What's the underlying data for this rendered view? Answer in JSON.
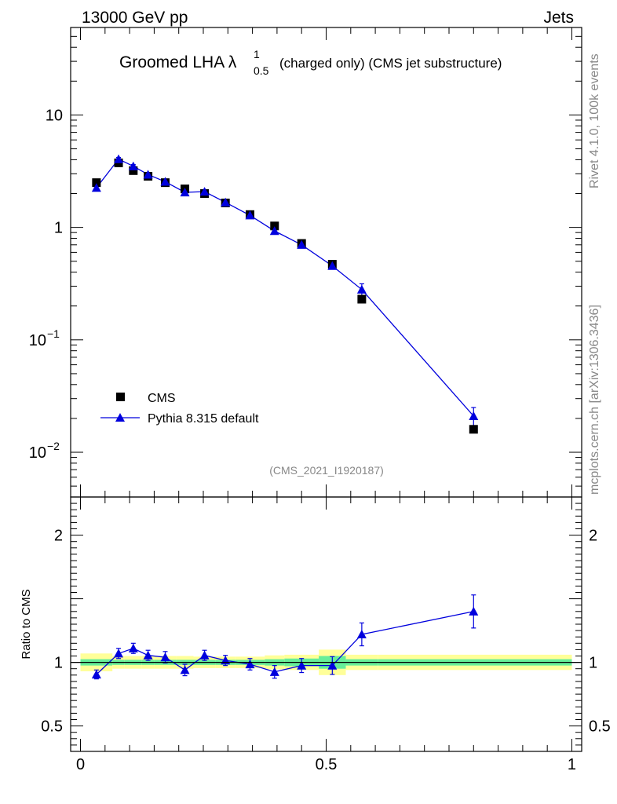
{
  "header": {
    "left": "13000 GeV pp",
    "right": "Jets"
  },
  "side_labels": {
    "rivet": "Rivet 4.1.0,  100k events",
    "mcplots": "mcplots.cern.ch [arXiv:1306.3436]"
  },
  "watermark": "(CMS_2021_I1920187)",
  "colors": {
    "data": "#000000",
    "mc": "#0000dd",
    "band_inner": "#66ee99",
    "band_outer": "#ffff99"
  },
  "chart_data": [
    {
      "type": "scatter",
      "panel": "main",
      "title": "Groomed LHA λ^1_0.5 (charged only) (CMS jet substructure)",
      "title_parts": {
        "prefix": "Groomed LHA λ",
        "sup": "1",
        "sub": "0.5",
        "suffix": "(charged only) (CMS jet substructure)"
      },
      "yscale": "log",
      "xlim": [
        -0.02,
        1.02
      ],
      "ylim": [
        0.004,
        60
      ],
      "ytick_labels": [
        {
          "value": 10,
          "text": "10"
        },
        {
          "value": 1,
          "text": "1"
        },
        {
          "value": 0.1,
          "base": "10",
          "exp": "−1"
        },
        {
          "value": 0.01,
          "base": "10",
          "exp": "−2"
        }
      ],
      "legend": [
        {
          "name": "CMS",
          "marker": "square"
        },
        {
          "name": "Pythia 8.315 default",
          "marker": "triangle"
        }
      ],
      "series": [
        {
          "name": "CMS",
          "x": [
            0.0325,
            0.0775,
            0.1075,
            0.1375,
            0.1725,
            0.2125,
            0.2525,
            0.295,
            0.345,
            0.395,
            0.45,
            0.5125,
            0.5725,
            0.8
          ],
          "y": [
            2.5,
            3.75,
            3.2,
            2.85,
            2.5,
            2.2,
            2.0,
            1.65,
            1.3,
            1.03,
            0.72,
            0.47,
            0.23,
            0.016
          ],
          "xerr": [
            0.0325,
            0.0125,
            0.0175,
            0.0125,
            0.0225,
            0.0175,
            0.0225,
            0.02,
            0.03,
            0.02,
            0.035,
            0.0275,
            0.0325,
            0.2
          ]
        },
        {
          "name": "Pythia 8.315 default",
          "x": [
            0.0325,
            0.0775,
            0.1075,
            0.1375,
            0.1725,
            0.2125,
            0.2525,
            0.295,
            0.345,
            0.395,
            0.45,
            0.5125,
            0.5725,
            0.8
          ],
          "y": [
            2.25,
            4.05,
            3.5,
            2.95,
            2.55,
            2.05,
            2.08,
            1.67,
            1.28,
            0.93,
            0.7,
            0.455,
            0.28,
            0.021
          ],
          "yerr": [
            0.08,
            0.14,
            0.12,
            0.1,
            0.09,
            0.08,
            0.08,
            0.06,
            0.05,
            0.04,
            0.035,
            0.03,
            0.035,
            0.004
          ]
        }
      ]
    },
    {
      "type": "scatter",
      "panel": "ratio",
      "ylabel": "Ratio to CMS",
      "xlim": [
        -0.02,
        1.02
      ],
      "ylim": [
        0.3,
        2.3
      ],
      "xtick_labels": [
        {
          "value": 0,
          "text": "0"
        },
        {
          "value": 0.5,
          "text": "0.5"
        },
        {
          "value": 1,
          "text": "1"
        }
      ],
      "ytick_labels": [
        {
          "value": 2,
          "text": "2"
        },
        {
          "value": 1,
          "text": "1"
        },
        {
          "value": 0.5,
          "text": "0.5"
        }
      ],
      "bands": [
        {
          "x0": 0.0,
          "x1": 0.065,
          "inner": 0.025,
          "outer": 0.07
        },
        {
          "x0": 0.065,
          "x1": 0.09,
          "inner": 0.02,
          "outer": 0.05
        },
        {
          "x0": 0.09,
          "x1": 0.125,
          "inner": 0.02,
          "outer": 0.05
        },
        {
          "x0": 0.125,
          "x1": 0.15,
          "inner": 0.02,
          "outer": 0.05
        },
        {
          "x0": 0.15,
          "x1": 0.195,
          "inner": 0.02,
          "outer": 0.05
        },
        {
          "x0": 0.195,
          "x1": 0.23,
          "inner": 0.02,
          "outer": 0.05
        },
        {
          "x0": 0.23,
          "x1": 0.275,
          "inner": 0.02,
          "outer": 0.045
        },
        {
          "x0": 0.275,
          "x1": 0.315,
          "inner": 0.02,
          "outer": 0.045
        },
        {
          "x0": 0.315,
          "x1": 0.375,
          "inner": 0.02,
          "outer": 0.045
        },
        {
          "x0": 0.375,
          "x1": 0.415,
          "inner": 0.025,
          "outer": 0.055
        },
        {
          "x0": 0.415,
          "x1": 0.485,
          "inner": 0.03,
          "outer": 0.06
        },
        {
          "x0": 0.485,
          "x1": 0.54,
          "inner": 0.05,
          "outer": 0.1
        },
        {
          "x0": 0.54,
          "x1": 0.605,
          "inner": 0.025,
          "outer": 0.06
        },
        {
          "x0": 0.605,
          "x1": 1.0,
          "inner": 0.025,
          "outer": 0.06
        }
      ],
      "series": [
        {
          "name": "Pythia 8.315 default",
          "x": [
            0.0325,
            0.0775,
            0.1075,
            0.1375,
            0.1725,
            0.2125,
            0.2525,
            0.295,
            0.345,
            0.395,
            0.45,
            0.5125,
            0.5725,
            0.8
          ],
          "y": [
            0.905,
            1.07,
            1.11,
            1.055,
            1.04,
            0.94,
            1.055,
            1.015,
            0.985,
            0.925,
            0.975,
            0.975,
            1.22,
            1.4
          ],
          "yerr": [
            0.035,
            0.04,
            0.04,
            0.04,
            0.045,
            0.045,
            0.04,
            0.04,
            0.045,
            0.05,
            0.055,
            0.07,
            0.09,
            0.13
          ]
        }
      ]
    }
  ]
}
